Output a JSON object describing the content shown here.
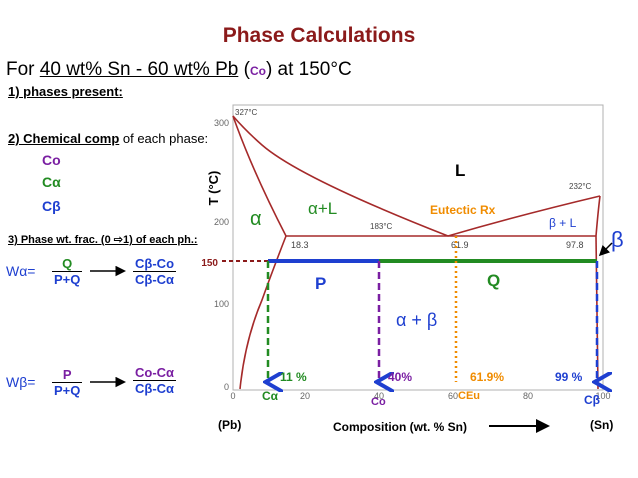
{
  "header": {
    "title": "Phase Calculations"
  },
  "problem": {
    "prefix": "For",
    "composition": "40 wt% Sn - 60 wt% Pb",
    "co": "Co",
    "suffix": "at 150°C"
  },
  "questions": {
    "q1": "1) phases present:",
    "q2_bold": "2) Chemical comp",
    "q2_rest": " of each phase:",
    "q3": "3) Phase wt. frac. (0 ⇨1) of each ph.:"
  },
  "comp_labels": {
    "co": "Co",
    "ca": "Cα",
    "cb": "Cβ"
  },
  "fractions": {
    "walpha": {
      "lhs": "Wα=",
      "num": "Q",
      "den": "P+Q",
      "rnum": "Cβ-Co",
      "rden": "Cβ-Cα"
    },
    "wbeta": {
      "lhs": "Wβ=",
      "num": "P",
      "den": "P+Q",
      "rnum": "Co-Cα",
      "rden": "Cβ-Cα"
    }
  },
  "diagram": {
    "ylabel": "T (°C)",
    "yticks": [
      "300",
      "200",
      "100",
      "0"
    ],
    "xticks": [
      "0",
      "20",
      "40",
      "60",
      "80",
      "100"
    ],
    "temps": {
      "t327": "327°C",
      "t232": "232°C",
      "t183": "183°C",
      "t150": "150"
    },
    "points": {
      "p18": "18.3",
      "p619": "61.9",
      "p978": "97.8"
    },
    "regions": {
      "L": "L",
      "alpha": "α",
      "alphaL": "α+L",
      "betaL": "β + L",
      "beta": "β",
      "ab": "α + β",
      "P": "P",
      "Q": "Q"
    },
    "eutectic": "Eutectic Rx",
    "marks": {
      "ca_pct": "11 %",
      "co_pct": "40%",
      "ceu_pct": "61.9%",
      "cb_pct": "99 %"
    },
    "bottom": {
      "ca": "Cα",
      "co": "Co",
      "ceu": "CEu",
      "cb": "Cβ"
    },
    "pb": "(Pb)",
    "sn": "(Sn)",
    "xlabel": "Composition (wt. % Sn)"
  },
  "colors": {
    "title": "#8b1a1a",
    "curve": "#a52a2a",
    "green": "#228b22",
    "blue": "#1e3fd0",
    "purple": "#7a1fa2",
    "orange": "#f08c00"
  },
  "icons": {
    "arrow": "right-arrow-icon"
  }
}
